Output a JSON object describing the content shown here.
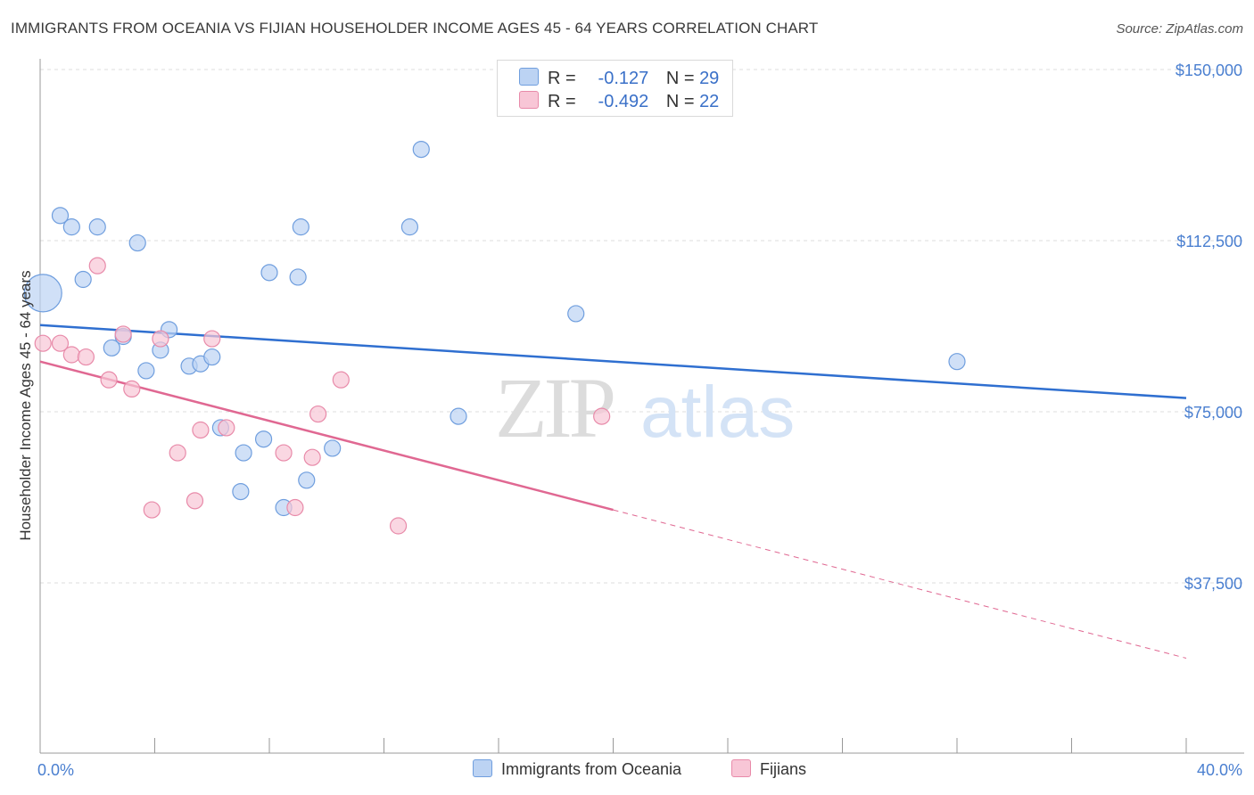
{
  "title": "IMMIGRANTS FROM OCEANIA VS FIJIAN HOUSEHOLDER INCOME AGES 45 - 64 YEARS CORRELATION CHART",
  "source": "Source: ZipAtlas.com",
  "watermark": {
    "zip": "ZIP",
    "atlas": "atlas"
  },
  "colors": {
    "blue_fill": "#bcd3f3",
    "blue_stroke": "#6f9ede",
    "blue_line": "#2f6fd0",
    "pink_fill": "#f8c6d6",
    "pink_stroke": "#e88aa9",
    "pink_line": "#e06892",
    "tick_text": "#4a7fd0",
    "grid": "#dddddd"
  },
  "legend": {
    "series1": {
      "r_label": "R =",
      "r_value": "-0.127",
      "n_label": "N =",
      "n_value": "29"
    },
    "series2": {
      "r_label": "R =",
      "r_value": "-0.492",
      "n_label": "N =",
      "n_value": "22"
    }
  },
  "chart_data": {
    "type": "scatter",
    "title": "IMMIGRANTS FROM OCEANIA VS FIJIAN HOUSEHOLDER INCOME AGES 45 - 64 YEARS CORRELATION CHART",
    "xlabel": "",
    "ylabel": "Householder Income Ages 45 - 64 years",
    "xlim": [
      0,
      40
    ],
    "ylim": [
      0,
      152000
    ],
    "x_tick_labels": [
      "0.0%",
      "40.0%"
    ],
    "y_ticks": [
      37500,
      75000,
      112500,
      150000
    ],
    "y_tick_labels": [
      "$37,500",
      "$75,000",
      "$112,500",
      "$150,000"
    ],
    "grid": true,
    "legend_position": "top-center",
    "series": [
      {
        "name": "Immigrants from Oceania",
        "color": "blue",
        "points": [
          {
            "x": 0.1,
            "y": 101000,
            "size": "large"
          },
          {
            "x": 0.7,
            "y": 118000
          },
          {
            "x": 1.1,
            "y": 115500
          },
          {
            "x": 2.0,
            "y": 115500
          },
          {
            "x": 3.4,
            "y": 112000
          },
          {
            "x": 1.5,
            "y": 104000
          },
          {
            "x": 2.5,
            "y": 89000
          },
          {
            "x": 2.9,
            "y": 91500
          },
          {
            "x": 4.5,
            "y": 93000
          },
          {
            "x": 4.2,
            "y": 88500
          },
          {
            "x": 3.7,
            "y": 84000
          },
          {
            "x": 5.2,
            "y": 85000
          },
          {
            "x": 5.6,
            "y": 85500
          },
          {
            "x": 6.0,
            "y": 87000
          },
          {
            "x": 6.3,
            "y": 71500
          },
          {
            "x": 7.1,
            "y": 66000
          },
          {
            "x": 7.0,
            "y": 57500
          },
          {
            "x": 7.8,
            "y": 69000
          },
          {
            "x": 8.0,
            "y": 105500
          },
          {
            "x": 9.0,
            "y": 104500
          },
          {
            "x": 9.1,
            "y": 115500
          },
          {
            "x": 8.5,
            "y": 54000
          },
          {
            "x": 9.3,
            "y": 60000
          },
          {
            "x": 10.2,
            "y": 67000
          },
          {
            "x": 12.9,
            "y": 115500
          },
          {
            "x": 13.3,
            "y": 132500
          },
          {
            "x": 14.6,
            "y": 74000
          },
          {
            "x": 18.7,
            "y": 96500
          },
          {
            "x": 32.0,
            "y": 86000
          }
        ],
        "trend": {
          "x1": 0,
          "y1": 94000,
          "x2": 40,
          "y2": 78000
        }
      },
      {
        "name": "Fijians",
        "color": "pink",
        "points": [
          {
            "x": 0.1,
            "y": 90000
          },
          {
            "x": 0.7,
            "y": 90000
          },
          {
            "x": 1.1,
            "y": 87500
          },
          {
            "x": 1.6,
            "y": 87000
          },
          {
            "x": 2.0,
            "y": 107000
          },
          {
            "x": 2.4,
            "y": 82000
          },
          {
            "x": 2.9,
            "y": 92000
          },
          {
            "x": 3.2,
            "y": 80000
          },
          {
            "x": 4.2,
            "y": 91000
          },
          {
            "x": 3.9,
            "y": 53500
          },
          {
            "x": 4.8,
            "y": 66000
          },
          {
            "x": 5.4,
            "y": 55500
          },
          {
            "x": 5.6,
            "y": 71000
          },
          {
            "x": 6.0,
            "y": 91000
          },
          {
            "x": 6.5,
            "y": 71500
          },
          {
            "x": 8.5,
            "y": 66000
          },
          {
            "x": 8.9,
            "y": 54000
          },
          {
            "x": 9.5,
            "y": 65000
          },
          {
            "x": 9.7,
            "y": 74500
          },
          {
            "x": 10.5,
            "y": 82000
          },
          {
            "x": 12.5,
            "y": 50000
          },
          {
            "x": 19.6,
            "y": 74000
          }
        ],
        "trend": {
          "x1": 0,
          "y1": 86000,
          "x2": 20,
          "y2": 53500,
          "dashed_to_x": 40,
          "dashed_to_y": 21000
        }
      }
    ]
  }
}
